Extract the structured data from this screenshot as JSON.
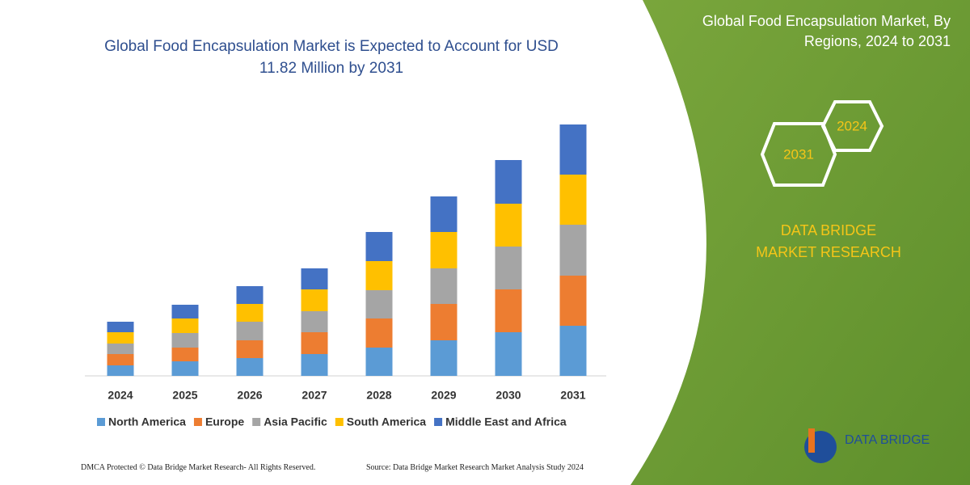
{
  "chart_data": {
    "type": "stacked-bar",
    "title": "Global Food Encapsulation Market is Expected to Account for USD 11.82 Million by 2031",
    "categories": [
      "2024",
      "2025",
      "2026",
      "2027",
      "2028",
      "2029",
      "2030",
      "2031"
    ],
    "series": [
      {
        "name": "North America",
        "color": "#5b9bd5",
        "values": [
          13,
          18,
          22,
          27,
          35,
          44,
          54,
          62
        ]
      },
      {
        "name": "Europe",
        "color": "#ed7d31",
        "values": [
          14,
          17,
          22,
          27,
          36,
          45,
          53,
          62
        ]
      },
      {
        "name": "Asia Pacific",
        "color": "#a5a5a5",
        "values": [
          13,
          18,
          23,
          26,
          35,
          44,
          53,
          63
        ]
      },
      {
        "name": "South America",
        "color": "#ffc000",
        "values": [
          14,
          18,
          22,
          27,
          36,
          45,
          53,
          62
        ]
      },
      {
        "name": "Middle East and Africa",
        "color": "#4472c4",
        "values": [
          13,
          17,
          22,
          26,
          36,
          44,
          54,
          62
        ]
      }
    ]
  },
  "panel": {
    "title": "Global Food Encapsulation Market, By Regions, 2024 to 2031",
    "hexagons": [
      "2031",
      "2024"
    ],
    "brand": "DATA BRIDGE MARKET RESEARCH",
    "logo": "DATA BRIDGE"
  },
  "footer": {
    "left": "DMCA Protected © Data Bridge Market Research- All Rights Reserved.",
    "right": "Source: Data Bridge Market Research Market Analysis Study 2024"
  }
}
